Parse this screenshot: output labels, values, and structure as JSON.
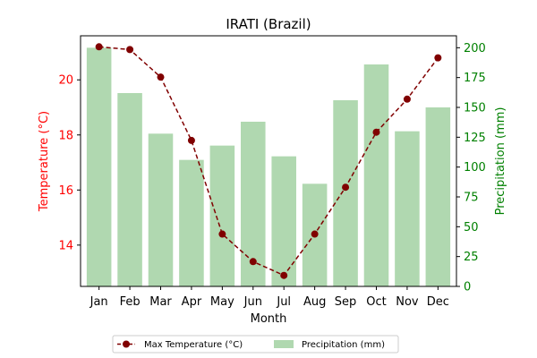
{
  "chart_data": {
    "type": "bar+line",
    "title": "IRATI (Brazil)",
    "xlabel": "Month",
    "ylabel_left": "Temperature (°C)",
    "ylabel_right": "Precipitation (mm)",
    "categories": [
      "Jan",
      "Feb",
      "Mar",
      "Apr",
      "May",
      "Jun",
      "Jul",
      "Aug",
      "Sep",
      "Oct",
      "Nov",
      "Dec"
    ],
    "left_axis": {
      "range": [
        12.5,
        21.6
      ],
      "ticks": [
        14,
        16,
        18,
        20
      ],
      "color": "#ff0000"
    },
    "right_axis": {
      "range": [
        0,
        210
      ],
      "ticks": [
        0,
        25,
        50,
        75,
        100,
        125,
        150,
        175,
        200
      ],
      "color": "#008000"
    },
    "series": [
      {
        "name": "Max Temperature (°C)",
        "type": "line",
        "axis": "left",
        "color": "#800000",
        "line_style": "dashed",
        "marker": "circle",
        "values": [
          21.2,
          21.1,
          20.1,
          17.8,
          14.4,
          13.4,
          12.9,
          14.4,
          16.1,
          18.1,
          19.3,
          20.8
        ]
      },
      {
        "name": "Precipitation (mm)",
        "type": "bar",
        "axis": "right",
        "color": "#b0d8b0",
        "values": [
          200,
          162,
          128,
          106,
          118,
          138,
          109,
          86,
          156,
          186,
          130,
          150
        ]
      }
    ],
    "grid": false,
    "legend": {
      "placement": "bottom-center",
      "columns": 2
    }
  }
}
